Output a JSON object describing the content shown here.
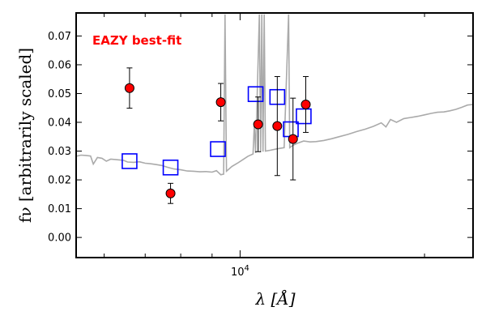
{
  "chart_data": {
    "type": "scatter",
    "title": "",
    "xlabel": "λ [Å]",
    "ylabel": "fν [arbitrarily scaled]",
    "xscale": "log",
    "xlim": [
      5400,
      24000
    ],
    "ylim": [
      -0.007,
      0.078
    ],
    "y_ticks": [
      0.0,
      0.01,
      0.02,
      0.03,
      0.04,
      0.05,
      0.06,
      0.07
    ],
    "y_tick_labels": [
      "0.00",
      "0.01",
      "0.02",
      "0.03",
      "0.04",
      "0.05",
      "0.06",
      "0.07"
    ],
    "x_major_ticks": [
      10000
    ],
    "x_major_tick_labels": [
      "10^4"
    ],
    "x_minor_ticks": [
      6000,
      7000,
      8000,
      9000,
      20000
    ],
    "grid": false,
    "annotation": {
      "text": "EAZY best-fit",
      "color": "#ff0000"
    },
    "series": [
      {
        "marker": "circle",
        "color": "#ff0000",
        "edge_color": "#000000",
        "errorbars": true,
        "points": [
          {
            "x": 6600,
            "y": 0.0519,
            "err": 0.007
          },
          {
            "x": 7700,
            "y": 0.0153,
            "err": 0.0035
          },
          {
            "x": 9300,
            "y": 0.047,
            "err": 0.0065
          },
          {
            "x": 10700,
            "y": 0.0393,
            "err": 0.0095
          },
          {
            "x": 11500,
            "y": 0.0387,
            "err": 0.0172
          },
          {
            "x": 12200,
            "y": 0.0342,
            "err": 0.0142
          },
          {
            "x": 12800,
            "y": 0.0462,
            "err": 0.0097
          }
        ]
      },
      {
        "marker": "square",
        "color": "#0000ff",
        "fill": "none",
        "points": [
          {
            "x": 6600,
            "y": 0.0265
          },
          {
            "x": 7700,
            "y": 0.0243
          },
          {
            "x": 9200,
            "y": 0.0307
          },
          {
            "x": 10600,
            "y": 0.0498
          },
          {
            "x": 11500,
            "y": 0.0488
          },
          {
            "x": 12100,
            "y": 0.0376
          },
          {
            "x": 12700,
            "y": 0.0421
          }
        ]
      },
      {
        "line": "spectrum",
        "color": "#aaaaaa",
        "points": [
          {
            "x": 5400,
            "y": 0.0282
          },
          {
            "x": 5500,
            "y": 0.0286
          },
          {
            "x": 5600,
            "y": 0.0285
          },
          {
            "x": 5700,
            "y": 0.0283
          },
          {
            "x": 5760,
            "y": 0.0255
          },
          {
            "x": 5850,
            "y": 0.0278
          },
          {
            "x": 5950,
            "y": 0.0275
          },
          {
            "x": 6050,
            "y": 0.0265
          },
          {
            "x": 6150,
            "y": 0.0272
          },
          {
            "x": 6300,
            "y": 0.027
          },
          {
            "x": 6450,
            "y": 0.0268
          },
          {
            "x": 6550,
            "y": 0.0262
          },
          {
            "x": 6700,
            "y": 0.0261
          },
          {
            "x": 6850,
            "y": 0.0263
          },
          {
            "x": 7000,
            "y": 0.0258
          },
          {
            "x": 7150,
            "y": 0.0256
          },
          {
            "x": 7300,
            "y": 0.0253
          },
          {
            "x": 7450,
            "y": 0.025
          },
          {
            "x": 7600,
            "y": 0.0244
          },
          {
            "x": 7800,
            "y": 0.0238
          },
          {
            "x": 8000,
            "y": 0.0235
          },
          {
            "x": 8200,
            "y": 0.0231
          },
          {
            "x": 8400,
            "y": 0.023
          },
          {
            "x": 8600,
            "y": 0.0228
          },
          {
            "x": 8800,
            "y": 0.0229
          },
          {
            "x": 9000,
            "y": 0.0227
          },
          {
            "x": 9150,
            "y": 0.0232
          },
          {
            "x": 9300,
            "y": 0.0218
          },
          {
            "x": 9400,
            "y": 0.022
          },
          {
            "x": 9450,
            "y": 0.0775
          },
          {
            "x": 9500,
            "y": 0.023
          },
          {
            "x": 9700,
            "y": 0.0247
          },
          {
            "x": 9900,
            "y": 0.0258
          },
          {
            "x": 10100,
            "y": 0.027
          },
          {
            "x": 10300,
            "y": 0.0282
          },
          {
            "x": 10500,
            "y": 0.029
          },
          {
            "x": 10550,
            "y": 0.0395
          },
          {
            "x": 10600,
            "y": 0.0293
          },
          {
            "x": 10750,
            "y": 0.0775
          },
          {
            "x": 10800,
            "y": 0.0296
          },
          {
            "x": 10850,
            "y": 0.0775
          },
          {
            "x": 10900,
            "y": 0.0298
          },
          {
            "x": 10950,
            "y": 0.0775
          },
          {
            "x": 11000,
            "y": 0.03
          },
          {
            "x": 11200,
            "y": 0.0303
          },
          {
            "x": 11500,
            "y": 0.0308
          },
          {
            "x": 11800,
            "y": 0.0312
          },
          {
            "x": 12000,
            "y": 0.0775
          },
          {
            "x": 12050,
            "y": 0.0312
          },
          {
            "x": 12200,
            "y": 0.032
          },
          {
            "x": 12400,
            "y": 0.0327
          },
          {
            "x": 12700,
            "y": 0.0335
          },
          {
            "x": 13000,
            "y": 0.0332
          },
          {
            "x": 13300,
            "y": 0.0333
          },
          {
            "x": 13700,
            "y": 0.0337
          },
          {
            "x": 14100,
            "y": 0.0343
          },
          {
            "x": 14500,
            "y": 0.035
          },
          {
            "x": 15000,
            "y": 0.0358
          },
          {
            "x": 15500,
            "y": 0.0368
          },
          {
            "x": 16000,
            "y": 0.0376
          },
          {
            "x": 16500,
            "y": 0.0386
          },
          {
            "x": 17000,
            "y": 0.0398
          },
          {
            "x": 17300,
            "y": 0.0384
          },
          {
            "x": 17600,
            "y": 0.041
          },
          {
            "x": 18000,
            "y": 0.04
          },
          {
            "x": 18500,
            "y": 0.0413
          },
          {
            "x": 19000,
            "y": 0.0417
          },
          {
            "x": 19500,
            "y": 0.0421
          },
          {
            "x": 20000,
            "y": 0.0426
          },
          {
            "x": 20500,
            "y": 0.0431
          },
          {
            "x": 21000,
            "y": 0.0435
          },
          {
            "x": 21500,
            "y": 0.0436
          },
          {
            "x": 22000,
            "y": 0.044
          },
          {
            "x": 22500,
            "y": 0.0445
          },
          {
            "x": 23000,
            "y": 0.0452
          },
          {
            "x": 23500,
            "y": 0.046
          },
          {
            "x": 24000,
            "y": 0.0462
          }
        ]
      }
    ]
  }
}
